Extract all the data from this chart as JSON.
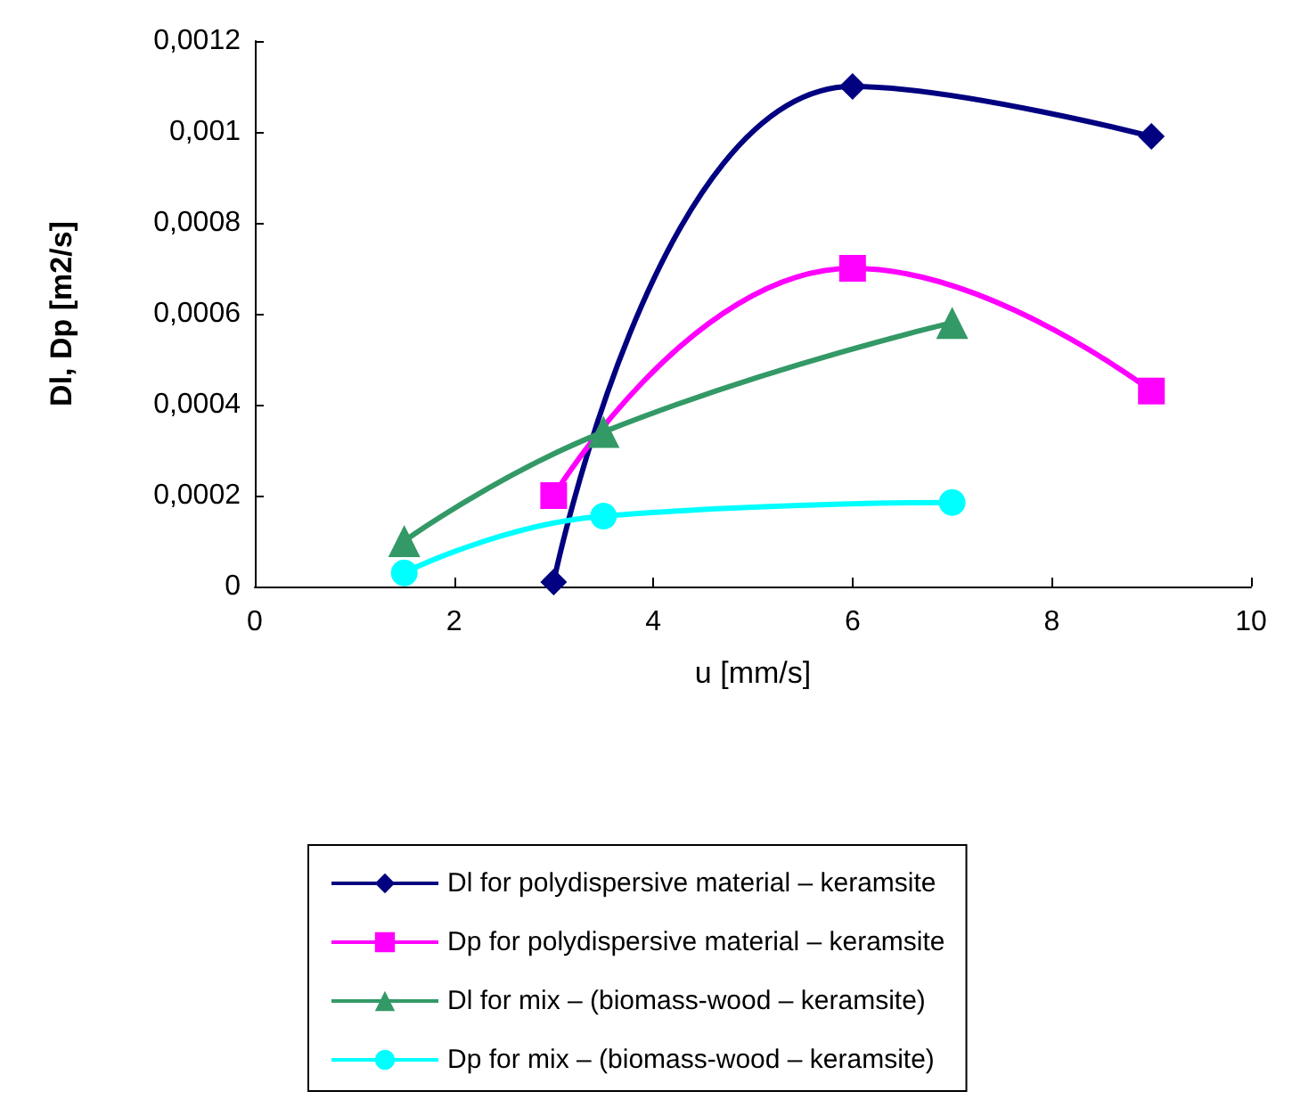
{
  "chart_data": {
    "type": "line",
    "xlabel": "u [mm/s]",
    "ylabel": "Dl, Dp [m2/s]",
    "xlim": [
      0,
      10
    ],
    "xticks": [
      0,
      2,
      4,
      6,
      8,
      10
    ],
    "ylim": [
      0,
      0.0012
    ],
    "yticks": [
      {
        "value": 0,
        "label": "0"
      },
      {
        "value": 0.0002,
        "label": "0,0002"
      },
      {
        "value": 0.0004,
        "label": "0,0004"
      },
      {
        "value": 0.0006,
        "label": "0,0006"
      },
      {
        "value": 0.0008,
        "label": "0,0008"
      },
      {
        "value": 0.001,
        "label": "0,001"
      },
      {
        "value": 0.0012,
        "label": "0,0012"
      }
    ],
    "grid": false,
    "legend": "bottom",
    "line_style": "solid",
    "series": [
      {
        "name": "Dl for polydispersive material – keramsite",
        "color": "#000080",
        "marker": "diamond",
        "x": [
          3,
          6,
          9
        ],
        "values": [
          1e-05,
          0.0011,
          0.00099
        ]
      },
      {
        "name": "Dp for polydispersive material – keramsite",
        "color": "#ff00ff",
        "marker": "square",
        "x": [
          3,
          6,
          9
        ],
        "values": [
          0.0002,
          0.0007,
          0.00043
        ]
      },
      {
        "name": "Dl for mix – (biomass-wood – keramsite)",
        "color": "#339966",
        "marker": "triangle",
        "x": [
          1.5,
          3.5,
          7
        ],
        "values": [
          0.0001,
          0.00034,
          0.00058
        ]
      },
      {
        "name": "Dp for mix – (biomass-wood – keramsite)",
        "color": "#00ffff",
        "marker": "circle",
        "x": [
          1.5,
          3.5,
          7
        ],
        "values": [
          3e-05,
          0.000155,
          0.000185
        ]
      }
    ]
  }
}
